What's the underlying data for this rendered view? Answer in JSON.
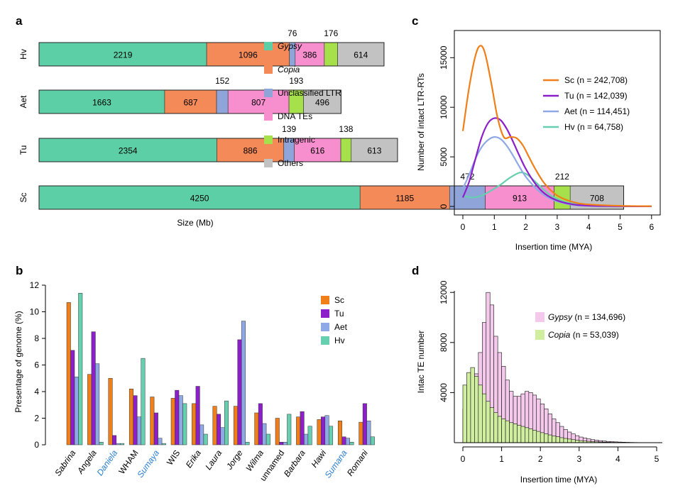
{
  "colors": {
    "Gypsy": "#5dcfa6",
    "Copia": "#f58a59",
    "Unclassified LTR": "#8fa4d8",
    "DNA TEs": "#f78fcf",
    "Intragenic": "#a6e04b",
    "Others": "#c2c2c2",
    "Sc": "#f07f1a",
    "Tu": "#8c1fc9",
    "Aet": "#8fa8e6",
    "Hv": "#66cfb0",
    "gypsy_hist": "#f5c9ec",
    "copia_hist": "#cfeea0",
    "link_blue": "#2b7fd4"
  },
  "panel_labels": [
    "a",
    "b",
    "c",
    "d"
  ],
  "chart_data": [
    {
      "id": "a",
      "type": "bar",
      "orientation": "horizontal-stacked",
      "xlabel": "Size (Mb)",
      "categories": [
        "Hv",
        "Aet",
        "Tu",
        "Sc"
      ],
      "series": [
        {
          "name": "Gypsy",
          "values": [
            2219,
            1663,
            2354,
            4250
          ]
        },
        {
          "name": "Copia",
          "values": [
            1096,
            687,
            886,
            1185
          ]
        },
        {
          "name": "Unclassified LTR",
          "values": [
            76,
            152,
            139,
            472
          ]
        },
        {
          "name": "DNA TEs",
          "values": [
            386,
            807,
            616,
            913
          ]
        },
        {
          "name": "Intragenic",
          "values": [
            176,
            193,
            138,
            212
          ]
        },
        {
          "name": "Others",
          "values": [
            614,
            496,
            613,
            708
          ]
        }
      ]
    },
    {
      "id": "b",
      "type": "bar",
      "ylabel": "Presentage of genome (%)",
      "ylim": [
        0,
        12
      ],
      "yticks": [
        0,
        2,
        4,
        6,
        8,
        10,
        12
      ],
      "categories": [
        "Sabrina",
        "Angela",
        "Daniela",
        "WHAM",
        "Sumaya",
        "WIS",
        "Erika",
        "Laura",
        "Jorge",
        "Wilma",
        "unnamed",
        "Barbara",
        "Hawi",
        "Sumana",
        "Romani"
      ],
      "category_styles": [
        "italic",
        "italic",
        "blue-italic",
        "normal",
        "blue-italic",
        "normal",
        "italic",
        "italic",
        "italic",
        "italic",
        "normal",
        "italic",
        "italic",
        "blue-italic",
        "italic"
      ],
      "series": [
        {
          "name": "Sc",
          "values": [
            10.7,
            5.3,
            5.0,
            4.2,
            3.6,
            3.5,
            3.1,
            2.9,
            2.9,
            2.4,
            2.0,
            2.1,
            1.9,
            1.8,
            1.7
          ]
        },
        {
          "name": "Tu",
          "values": [
            7.1,
            8.5,
            0.7,
            3.7,
            2.4,
            4.1,
            4.4,
            2.3,
            7.9,
            3.1,
            0.2,
            2.5,
            2.1,
            0.6,
            3.1
          ]
        },
        {
          "name": "Aet",
          "values": [
            5.1,
            6.1,
            0.1,
            2.1,
            0.5,
            3.7,
            1.5,
            1.3,
            9.3,
            1.6,
            0.2,
            0.8,
            2.2,
            0.5,
            1.8
          ]
        },
        {
          "name": "Hv",
          "values": [
            11.4,
            0.2,
            0.1,
            6.5,
            0.1,
            3.1,
            0.8,
            3.3,
            0.2,
            0.8,
            2.3,
            1.4,
            1.4,
            0.2,
            0.6
          ]
        }
      ]
    },
    {
      "id": "c",
      "type": "line",
      "xlabel": "Insertion time (MYA)",
      "ylabel": "Number of intact LTR-RTs",
      "xlim": [
        0,
        6
      ],
      "ylim": [
        0,
        16500
      ],
      "xticks": [
        0,
        1,
        2,
        3,
        4,
        5,
        6
      ],
      "yticks": [
        0,
        5000,
        10000,
        15000
      ],
      "series": [
        {
          "name": "Sc",
          "label": "Sc (n = 242,708)",
          "x": [
            0,
            0.2,
            0.4,
            0.55,
            0.7,
            0.9,
            1.1,
            1.3,
            1.5,
            1.7,
            1.9,
            2.1,
            2.3,
            2.6,
            3.0,
            3.5,
            4.0,
            5.0,
            6.0
          ],
          "y": [
            7600,
            12000,
            15200,
            16200,
            15500,
            12500,
            9000,
            7000,
            7000,
            6900,
            6200,
            5000,
            3800,
            2300,
            1100,
            450,
            200,
            60,
            20
          ]
        },
        {
          "name": "Tu",
          "label": "Tu (n = 142,039)",
          "x": [
            0,
            0.2,
            0.4,
            0.6,
            0.8,
            1.0,
            1.2,
            1.4,
            1.6,
            1.8,
            2.0,
            2.3,
            2.6,
            3.0,
            3.5,
            4.0,
            5.0,
            6.0
          ],
          "y": [
            900,
            2500,
            4800,
            7000,
            8400,
            8900,
            8700,
            7800,
            6500,
            5100,
            3800,
            2300,
            1300,
            600,
            200,
            80,
            20,
            5
          ]
        },
        {
          "name": "Aet",
          "label": "Aet (n = 114,451)",
          "x": [
            0,
            0.2,
            0.4,
            0.6,
            0.8,
            1.0,
            1.2,
            1.4,
            1.6,
            1.8,
            2.0,
            2.3,
            2.6,
            3.0,
            3.5,
            4.0,
            5.0,
            6.0
          ],
          "y": [
            1800,
            3200,
            4800,
            6000,
            6700,
            7000,
            6800,
            6100,
            5100,
            4000,
            3000,
            1900,
            1100,
            500,
            150,
            50,
            10,
            5
          ]
        },
        {
          "name": "Hv",
          "label": "Hv (n = 64,758)",
          "x": [
            0,
            0.3,
            0.6,
            0.9,
            1.2,
            1.5,
            1.8,
            2.0,
            2.2,
            2.5,
            2.8,
            3.2,
            3.7,
            4.2,
            5.0,
            6.0
          ],
          "y": [
            1100,
            900,
            1100,
            1600,
            2200,
            2900,
            3400,
            3300,
            2800,
            1900,
            1100,
            500,
            200,
            80,
            20,
            5
          ]
        }
      ]
    },
    {
      "id": "d",
      "type": "bar",
      "subtype": "histogram",
      "xlabel": "Insertion time (MYA)",
      "ylabel": "Intac TE number",
      "xlim": [
        0,
        5
      ],
      "ylim": [
        0,
        12500
      ],
      "xticks": [
        0,
        1,
        2,
        3,
        4,
        5
      ],
      "yticks": [
        4000,
        8000,
        12000
      ],
      "bin_width": 0.1,
      "series": [
        {
          "name": "Gypsy",
          "label_italic": "Gypsy",
          "label_rest": " (n = 134,696)",
          "values": [
            2700,
            3400,
            4100,
            5500,
            7200,
            9600,
            12000,
            11000,
            8500,
            7200,
            6100,
            5000,
            4100,
            3700,
            3700,
            3900,
            4100,
            4000,
            3800,
            3500,
            3100,
            2700,
            2300,
            1900,
            1600,
            1300,
            1050,
            850,
            700,
            560,
            450,
            370,
            300,
            240,
            200,
            160,
            130,
            100,
            80,
            65,
            50,
            40,
            30,
            22,
            16,
            12,
            8,
            6,
            4,
            2
          ]
        },
        {
          "name": "Copia",
          "label_italic": "Copia",
          "label_rest": " (n = 53,039)",
          "values": [
            4600,
            5600,
            6000,
            5300,
            4600,
            3900,
            3300,
            2800,
            2400,
            2100,
            1900,
            1750,
            1600,
            1500,
            1400,
            1300,
            1200,
            1100,
            1000,
            900,
            800,
            700,
            620,
            540,
            470,
            400,
            340,
            290,
            240,
            200,
            160,
            130,
            110,
            90,
            70,
            55,
            45,
            35,
            28,
            22,
            16,
            12,
            9,
            6,
            4,
            3,
            2,
            1,
            1,
            0
          ]
        }
      ]
    }
  ]
}
